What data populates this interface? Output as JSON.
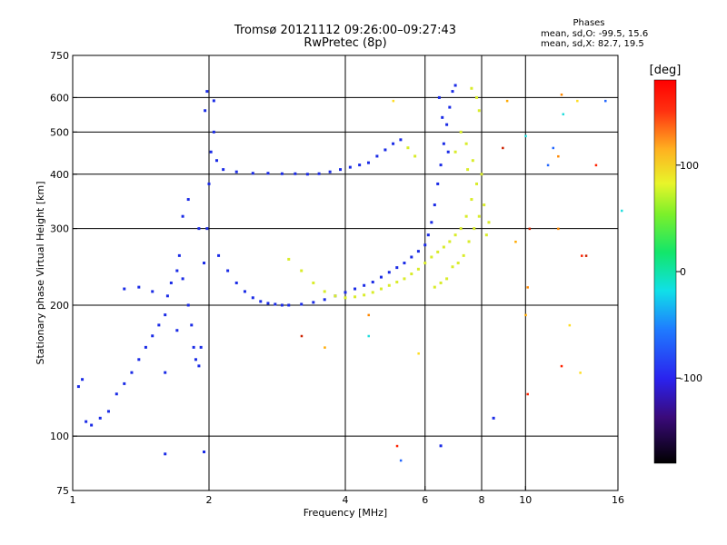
{
  "header": {
    "title_line1": "Tromsø 20121112 09:26:00–09:27:43",
    "title_line2": "RwPretec (8p)",
    "phases_label": "Phases",
    "phases_o": "mean, sd,O: -99.5, 15.6",
    "phases_x": "mean, sd,X:  82.7, 19.5"
  },
  "colorbar": {
    "label": "[deg]",
    "ticks": [
      "100",
      "0",
      "-100"
    ],
    "tick_values": [
      100,
      0,
      -100
    ],
    "range": [
      -180,
      180
    ]
  },
  "colors": {
    "o_mode": "#1a2be6",
    "x_mode": "#d9ec2a",
    "grid": "#000000",
    "background": "#ffffff"
  },
  "chart_data": {
    "type": "scatter",
    "title": "Tromsø 20121112 09:26:00–09:27:43",
    "subtitle": "RwPretec (8p)",
    "xlabel": "Frequency [MHz]",
    "ylabel": "Stationary phase Virtual Height [km]",
    "x_scale": "log",
    "y_scale": "log",
    "xlim": [
      1,
      16
    ],
    "ylim": [
      75,
      750
    ],
    "x_ticks": [
      1,
      2,
      4,
      6,
      8,
      10,
      16
    ],
    "y_ticks": [
      75,
      100,
      200,
      300,
      400,
      500,
      600,
      750
    ],
    "x_grid": [
      2,
      4,
      6,
      8,
      10
    ],
    "y_grid": [
      100,
      200,
      300,
      400,
      500,
      600
    ],
    "grid": true,
    "color_scale": "phase [deg]",
    "series": [
      {
        "name": "O",
        "phase_mean": -99.5,
        "phase_sd": 15.6,
        "points": [
          [
            1.03,
            130
          ],
          [
            1.05,
            135
          ],
          [
            1.07,
            108
          ],
          [
            1.1,
            106
          ],
          [
            1.15,
            110
          ],
          [
            1.2,
            114
          ],
          [
            1.25,
            125
          ],
          [
            1.3,
            132
          ],
          [
            1.35,
            140
          ],
          [
            1.4,
            150
          ],
          [
            1.45,
            160
          ],
          [
            1.5,
            170
          ],
          [
            1.55,
            180
          ],
          [
            1.6,
            190
          ],
          [
            1.62,
            210
          ],
          [
            1.65,
            225
          ],
          [
            1.7,
            240
          ],
          [
            1.72,
            260
          ],
          [
            1.75,
            230
          ],
          [
            1.8,
            200
          ],
          [
            1.83,
            180
          ],
          [
            1.85,
            160
          ],
          [
            1.87,
            150
          ],
          [
            1.9,
            145
          ],
          [
            1.92,
            160
          ],
          [
            1.95,
            250
          ],
          [
            1.98,
            300
          ],
          [
            2.0,
            380
          ],
          [
            2.02,
            450
          ],
          [
            2.05,
            500
          ],
          [
            1.96,
            560
          ],
          [
            1.98,
            620
          ],
          [
            2.08,
            430
          ],
          [
            2.15,
            410
          ],
          [
            2.3,
            405
          ],
          [
            2.5,
            402
          ],
          [
            2.7,
            402
          ],
          [
            2.9,
            401
          ],
          [
            3.1,
            401
          ],
          [
            3.3,
            400
          ],
          [
            3.5,
            401
          ],
          [
            3.7,
            405
          ],
          [
            3.9,
            410
          ],
          [
            4.1,
            415
          ],
          [
            4.3,
            420
          ],
          [
            4.5,
            425
          ],
          [
            4.7,
            440
          ],
          [
            4.9,
            455
          ],
          [
            5.1,
            470
          ],
          [
            5.3,
            480
          ],
          [
            2.1,
            260
          ],
          [
            2.2,
            240
          ],
          [
            2.3,
            225
          ],
          [
            2.4,
            215
          ],
          [
            2.5,
            208
          ],
          [
            2.6,
            204
          ],
          [
            2.7,
            202
          ],
          [
            2.8,
            201
          ],
          [
            2.9,
            200
          ],
          [
            3.0,
            200
          ],
          [
            3.2,
            201
          ],
          [
            3.4,
            203
          ],
          [
            3.6,
            206
          ],
          [
            3.8,
            210
          ],
          [
            4.0,
            214
          ],
          [
            4.2,
            218
          ],
          [
            4.4,
            222
          ],
          [
            4.6,
            226
          ],
          [
            4.8,
            232
          ],
          [
            5.0,
            238
          ],
          [
            5.2,
            244
          ],
          [
            5.4,
            250
          ],
          [
            5.6,
            258
          ],
          [
            5.8,
            266
          ],
          [
            6.0,
            275
          ],
          [
            6.1,
            290
          ],
          [
            6.2,
            310
          ],
          [
            6.3,
            340
          ],
          [
            6.4,
            380
          ],
          [
            6.5,
            420
          ],
          [
            6.6,
            470
          ],
          [
            6.7,
            520
          ],
          [
            6.8,
            570
          ],
          [
            6.9,
            620
          ],
          [
            7.0,
            640
          ],
          [
            6.45,
            600
          ],
          [
            6.55,
            540
          ],
          [
            6.75,
            450
          ],
          [
            1.5,
            215
          ],
          [
            1.6,
            140
          ],
          [
            1.7,
            175
          ],
          [
            1.4,
            220
          ],
          [
            1.3,
            218
          ],
          [
            1.8,
            350
          ],
          [
            1.9,
            300
          ],
          [
            1.75,
            320
          ],
          [
            2.05,
            590
          ],
          [
            1.6,
            91
          ],
          [
            1.95,
            92
          ],
          [
            6.5,
            95
          ],
          [
            8.5,
            110
          ]
        ]
      },
      {
        "name": "X",
        "phase_mean": 82.7,
        "phase_sd": 19.5,
        "points": [
          [
            3.0,
            255
          ],
          [
            3.2,
            240
          ],
          [
            3.4,
            225
          ],
          [
            3.6,
            215
          ],
          [
            3.8,
            210
          ],
          [
            4.0,
            208
          ],
          [
            4.2,
            209
          ],
          [
            4.4,
            211
          ],
          [
            4.6,
            214
          ],
          [
            4.8,
            218
          ],
          [
            5.0,
            222
          ],
          [
            5.2,
            226
          ],
          [
            5.4,
            230
          ],
          [
            5.6,
            236
          ],
          [
            5.8,
            242
          ],
          [
            6.0,
            250
          ],
          [
            6.2,
            258
          ],
          [
            6.4,
            265
          ],
          [
            6.6,
            272
          ],
          [
            6.8,
            280
          ],
          [
            7.0,
            290
          ],
          [
            7.2,
            300
          ],
          [
            7.4,
            320
          ],
          [
            7.6,
            350
          ],
          [
            7.8,
            380
          ],
          [
            8.0,
            400
          ],
          [
            7.5,
            280
          ],
          [
            7.7,
            300
          ],
          [
            7.9,
            320
          ],
          [
            8.1,
            340
          ],
          [
            7.3,
            260
          ],
          [
            7.1,
            250
          ],
          [
            6.9,
            245
          ],
          [
            7.6,
            630
          ],
          [
            7.8,
            600
          ],
          [
            7.9,
            560
          ],
          [
            7.2,
            500
          ],
          [
            7.4,
            470
          ],
          [
            7.0,
            450
          ],
          [
            5.5,
            460
          ],
          [
            5.7,
            440
          ],
          [
            8.3,
            310
          ],
          [
            8.2,
            290
          ],
          [
            6.7,
            230
          ],
          [
            6.5,
            225
          ],
          [
            6.3,
            220
          ],
          [
            7.45,
            410
          ],
          [
            7.65,
            430
          ]
        ]
      }
    ],
    "outliers": [
      [
        12.0,
        610
      ],
      [
        13.0,
        590
      ],
      [
        14.3,
        420
      ],
      [
        11.5,
        460
      ],
      [
        10.0,
        490
      ],
      [
        10.2,
        300
      ],
      [
        9.5,
        280
      ],
      [
        11.8,
        300
      ],
      [
        12.5,
        180
      ],
      [
        13.3,
        260
      ],
      [
        15.0,
        590
      ],
      [
        16.3,
        330
      ],
      [
        13.6,
        260
      ],
      [
        10.0,
        190
      ],
      [
        10.1,
        220
      ],
      [
        13.2,
        140
      ],
      [
        10.1,
        125
      ],
      [
        11.2,
        420
      ],
      [
        12.1,
        550
      ],
      [
        8.9,
        460
      ],
      [
        9.1,
        590
      ],
      [
        11.8,
        440
      ],
      [
        5.1,
        590
      ],
      [
        5.2,
        95
      ],
      [
        5.3,
        88
      ],
      [
        4.5,
        170
      ],
      [
        3.2,
        170
      ],
      [
        3.6,
        160
      ],
      [
        4.5,
        190
      ],
      [
        5.8,
        155
      ],
      [
        12.0,
        145
      ]
    ]
  }
}
